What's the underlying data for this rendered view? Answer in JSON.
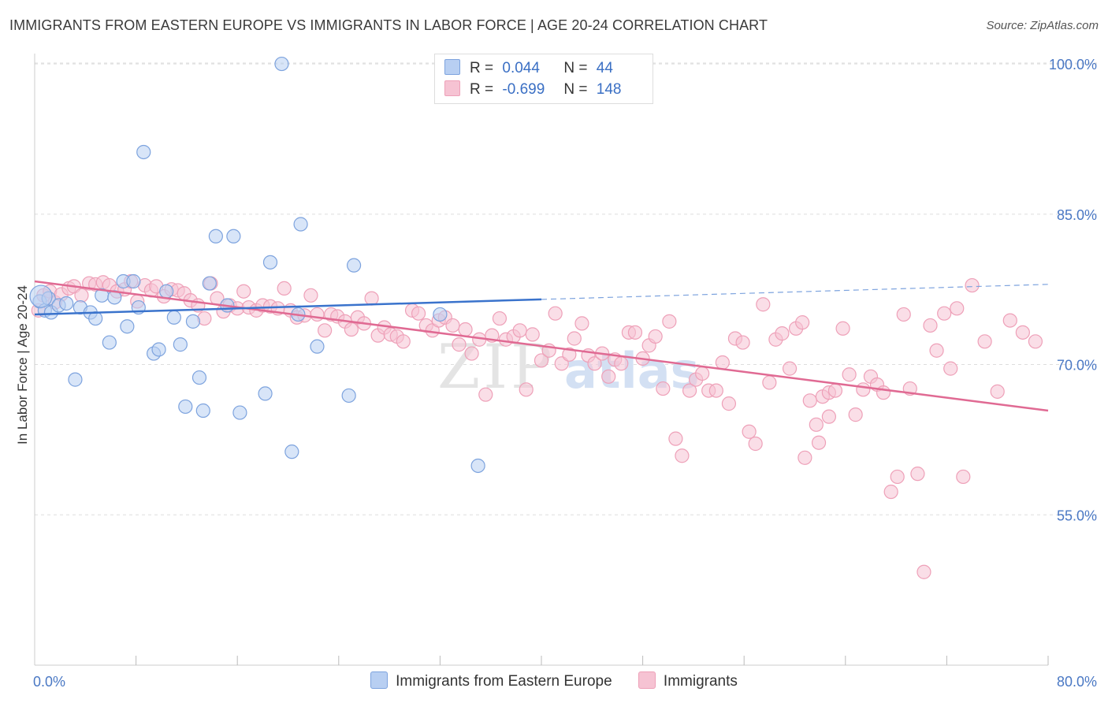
{
  "header": {
    "title": "IMMIGRANTS FROM EASTERN EUROPE VS IMMIGRANTS IN LABOR FORCE | AGE 20-24 CORRELATION CHART",
    "source": "Source: ZipAtlas.com"
  },
  "legend": {
    "series1": {
      "r_label": "R =",
      "r_value": "0.044",
      "n_label": "N =",
      "n_value": "44"
    },
    "series2": {
      "r_label": "R =",
      "r_value": "-0.699",
      "n_label": "N =",
      "n_value": "148"
    }
  },
  "colors": {
    "blue_fill": "#b8cff2",
    "blue_stroke": "#7da3de",
    "blue_line": "#3a73cc",
    "pink_fill": "#f6c3d3",
    "pink_stroke": "#eea0b8",
    "pink_line": "#e06a93",
    "tick_text": "#4a78c4",
    "grid": "#dddddd"
  },
  "chart_data": {
    "type": "scatter",
    "title": "IMMIGRANTS FROM EASTERN EUROPE VS IMMIGRANTS IN LABOR FORCE | AGE 20-24 CORRELATION CHART",
    "xlabel": "",
    "ylabel": "In Labor Force | Age 20-24",
    "xlim": [
      0,
      80
    ],
    "ylim": [
      40,
      101.5
    ],
    "x_tick_labels": [
      "0.0%",
      "80.0%"
    ],
    "y_ticks": [
      55,
      70,
      85,
      100
    ],
    "y_tick_labels": [
      "55.0%",
      "70.0%",
      "85.0%",
      "100.0%"
    ],
    "grid": true,
    "legend_placement": "top-center",
    "watermark": "ZIPatlas",
    "series": [
      {
        "name": "Immigrants from Eastern Europe",
        "color": "#b8cff2",
        "trend": {
          "x": [
            0,
            40
          ],
          "y": [
            75.0,
            76.5
          ],
          "dashed_extension": [
            40,
            80
          ],
          "dashed_y_end": 78.0
        },
        "points": [
          [
            0.4,
            76.3
          ],
          [
            0.8,
            75.4
          ],
          [
            1.1,
            76.6
          ],
          [
            1.3,
            75.2
          ],
          [
            1.9,
            75.9
          ],
          [
            2.5,
            76.1
          ],
          [
            3.2,
            68.5
          ],
          [
            3.6,
            75.7
          ],
          [
            4.4,
            75.2
          ],
          [
            4.8,
            74.6
          ],
          [
            5.3,
            76.9
          ],
          [
            5.9,
            72.2
          ],
          [
            6.3,
            76.7
          ],
          [
            7.0,
            78.3
          ],
          [
            7.3,
            73.8
          ],
          [
            7.8,
            78.3
          ],
          [
            8.2,
            75.7
          ],
          [
            8.6,
            91.2
          ],
          [
            9.4,
            71.1
          ],
          [
            9.8,
            71.5
          ],
          [
            10.4,
            77.3
          ],
          [
            11.0,
            74.7
          ],
          [
            11.5,
            72.0
          ],
          [
            11.9,
            65.8
          ],
          [
            12.5,
            74.3
          ],
          [
            13.0,
            68.7
          ],
          [
            13.3,
            65.4
          ],
          [
            13.8,
            78.1
          ],
          [
            14.3,
            82.8
          ],
          [
            15.2,
            75.9
          ],
          [
            15.7,
            82.8
          ],
          [
            16.2,
            65.2
          ],
          [
            18.2,
            67.1
          ],
          [
            18.6,
            80.2
          ],
          [
            19.5,
            100.0
          ],
          [
            20.3,
            61.3
          ],
          [
            20.8,
            75.0
          ],
          [
            21.0,
            84.0
          ],
          [
            22.3,
            71.8
          ],
          [
            24.8,
            66.9
          ],
          [
            25.2,
            79.9
          ],
          [
            32.0,
            75.0
          ],
          [
            35.0,
            59.9
          ],
          [
            0.5,
            76.8
          ]
        ]
      },
      {
        "name": "Immigrants",
        "color": "#f6c3d3",
        "trend": {
          "x": [
            0,
            80
          ],
          "y": [
            78.3,
            65.4
          ]
        },
        "points": [
          [
            0.3,
            75.4
          ],
          [
            0.7,
            76.9
          ],
          [
            1.2,
            77.3
          ],
          [
            1.6,
            76.2
          ],
          [
            2.1,
            77.0
          ],
          [
            2.7,
            77.6
          ],
          [
            3.1,
            77.8
          ],
          [
            3.7,
            76.9
          ],
          [
            4.3,
            78.1
          ],
          [
            4.8,
            78.0
          ],
          [
            5.4,
            78.2
          ],
          [
            5.9,
            77.9
          ],
          [
            6.5,
            77.3
          ],
          [
            7.1,
            77.5
          ],
          [
            7.6,
            78.3
          ],
          [
            8.1,
            76.3
          ],
          [
            8.7,
            77.9
          ],
          [
            9.2,
            77.4
          ],
          [
            9.6,
            77.8
          ],
          [
            10.2,
            76.8
          ],
          [
            10.8,
            77.5
          ],
          [
            11.3,
            77.4
          ],
          [
            11.8,
            77.1
          ],
          [
            12.3,
            76.4
          ],
          [
            12.9,
            75.9
          ],
          [
            13.4,
            74.6
          ],
          [
            13.9,
            78.1
          ],
          [
            14.4,
            76.6
          ],
          [
            14.9,
            75.3
          ],
          [
            15.4,
            75.9
          ],
          [
            16.0,
            75.6
          ],
          [
            16.5,
            77.3
          ],
          [
            16.9,
            75.7
          ],
          [
            17.5,
            75.4
          ],
          [
            18.0,
            75.9
          ],
          [
            18.6,
            75.8
          ],
          [
            19.2,
            75.6
          ],
          [
            19.7,
            77.6
          ],
          [
            20.2,
            75.4
          ],
          [
            20.7,
            74.7
          ],
          [
            21.3,
            74.9
          ],
          [
            21.8,
            76.9
          ],
          [
            22.3,
            75.0
          ],
          [
            22.9,
            73.4
          ],
          [
            23.4,
            75.0
          ],
          [
            23.9,
            74.8
          ],
          [
            24.5,
            74.3
          ],
          [
            25.0,
            73.5
          ],
          [
            25.5,
            74.7
          ],
          [
            26.0,
            74.1
          ],
          [
            26.6,
            76.6
          ],
          [
            27.1,
            72.9
          ],
          [
            27.6,
            73.7
          ],
          [
            28.1,
            73.0
          ],
          [
            28.6,
            72.8
          ],
          [
            29.1,
            72.3
          ],
          [
            29.8,
            75.4
          ],
          [
            30.3,
            75.1
          ],
          [
            30.9,
            73.9
          ],
          [
            31.4,
            73.4
          ],
          [
            31.9,
            74.4
          ],
          [
            32.4,
            74.7
          ],
          [
            33.0,
            73.9
          ],
          [
            33.5,
            72.0
          ],
          [
            34.0,
            73.5
          ],
          [
            34.5,
            71.1
          ],
          [
            35.1,
            72.5
          ],
          [
            35.6,
            67.0
          ],
          [
            36.1,
            72.9
          ],
          [
            36.7,
            74.6
          ],
          [
            37.2,
            72.5
          ],
          [
            37.8,
            72.8
          ],
          [
            38.3,
            73.4
          ],
          [
            38.8,
            67.5
          ],
          [
            39.3,
            73.0
          ],
          [
            40.0,
            70.4
          ],
          [
            40.6,
            71.4
          ],
          [
            41.1,
            75.1
          ],
          [
            41.6,
            70.1
          ],
          [
            42.2,
            71.0
          ],
          [
            42.6,
            72.6
          ],
          [
            43.2,
            74.1
          ],
          [
            43.7,
            70.9
          ],
          [
            44.2,
            70.1
          ],
          [
            44.8,
            71.1
          ],
          [
            45.3,
            68.8
          ],
          [
            45.8,
            70.5
          ],
          [
            46.3,
            70.1
          ],
          [
            46.9,
            73.2
          ],
          [
            47.4,
            73.2
          ],
          [
            48.0,
            70.6
          ],
          [
            48.5,
            71.9
          ],
          [
            49.0,
            72.8
          ],
          [
            49.6,
            67.6
          ],
          [
            50.1,
            74.3
          ],
          [
            50.6,
            62.6
          ],
          [
            51.1,
            60.9
          ],
          [
            51.7,
            67.4
          ],
          [
            52.2,
            68.5
          ],
          [
            52.7,
            69.1
          ],
          [
            53.2,
            67.4
          ],
          [
            53.8,
            67.4
          ],
          [
            54.3,
            70.2
          ],
          [
            54.8,
            66.1
          ],
          [
            55.3,
            72.6
          ],
          [
            55.9,
            72.2
          ],
          [
            56.4,
            63.3
          ],
          [
            56.9,
            62.1
          ],
          [
            57.5,
            76.0
          ],
          [
            58.0,
            68.2
          ],
          [
            58.5,
            72.5
          ],
          [
            59.0,
            73.1
          ],
          [
            59.6,
            69.6
          ],
          [
            60.1,
            73.6
          ],
          [
            60.6,
            74.2
          ],
          [
            61.2,
            66.4
          ],
          [
            61.7,
            64.0
          ],
          [
            62.2,
            66.8
          ],
          [
            62.7,
            67.2
          ],
          [
            63.2,
            67.4
          ],
          [
            63.8,
            73.6
          ],
          [
            64.3,
            69.0
          ],
          [
            64.8,
            65.0
          ],
          [
            65.4,
            67.5
          ],
          [
            66.0,
            68.8
          ],
          [
            66.5,
            68.0
          ],
          [
            67.0,
            67.2
          ],
          [
            67.6,
            57.3
          ],
          [
            68.1,
            58.8
          ],
          [
            68.6,
            75.0
          ],
          [
            69.1,
            67.6
          ],
          [
            69.7,
            59.1
          ],
          [
            70.2,
            49.3
          ],
          [
            70.7,
            73.9
          ],
          [
            71.2,
            71.4
          ],
          [
            71.8,
            75.1
          ],
          [
            72.3,
            69.6
          ],
          [
            72.8,
            75.6
          ],
          [
            73.3,
            58.8
          ],
          [
            74.0,
            77.9
          ],
          [
            75.0,
            72.3
          ],
          [
            76.0,
            67.3
          ],
          [
            77.0,
            74.4
          ],
          [
            78.0,
            73.2
          ],
          [
            79.0,
            72.3
          ],
          [
            60.8,
            60.7
          ],
          [
            61.9,
            62.2
          ],
          [
            62.7,
            64.8
          ]
        ]
      }
    ]
  },
  "bottom_legend": {
    "item1": "Immigrants from Eastern Europe",
    "item2": "Immigrants"
  }
}
